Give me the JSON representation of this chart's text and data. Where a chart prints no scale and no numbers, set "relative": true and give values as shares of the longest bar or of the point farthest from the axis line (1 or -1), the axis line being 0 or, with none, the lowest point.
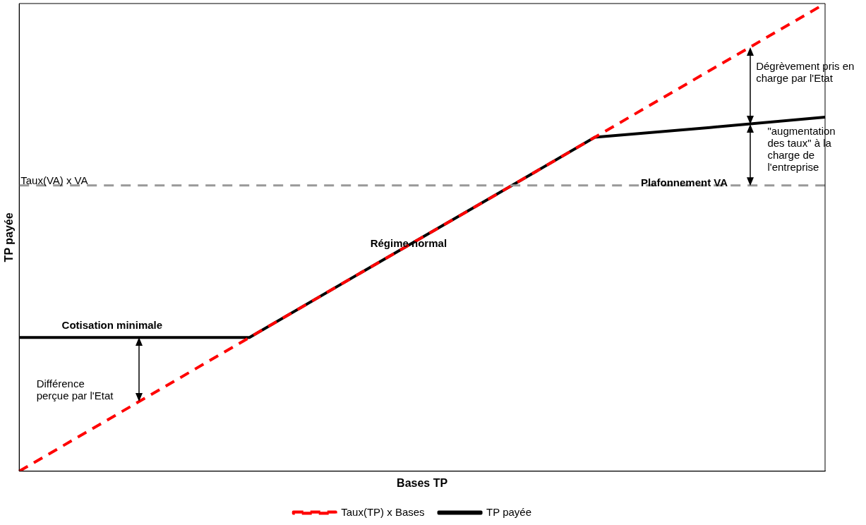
{
  "chart_data": {
    "type": "line",
    "relative": true,
    "xlabel": "Bases TP",
    "ylabel": "TP payée",
    "categories": [
      null,
      null,
      null,
      null,
      null,
      null,
      null,
      null
    ],
    "grid": false,
    "legend": "bottom",
    "tick_labels": false,
    "marker": "none",
    "series": [
      {
        "name": "Taux(TP) x Bases",
        "color": "#ff0000",
        "line_style": "dashed",
        "values": [
          0,
          0.143,
          0.286,
          0.429,
          0.571,
          0.714,
          0.857,
          1
        ]
      },
      {
        "name": "TP payée",
        "color": "#000000",
        "line_style": "solid",
        "values": [
          0.286,
          0.286,
          0.286,
          0.429,
          0.571,
          0.714,
          0.735,
          0.757
        ]
      }
    ],
    "ref_lines": [
      {
        "axis": "y",
        "value": 0.611,
        "label": "Taux(VA) x VA",
        "color": "#999999",
        "line_style": "dashed"
      }
    ],
    "annotations": [
      "Cotisation minimale",
      "Régime normal",
      "Plafonnement VA",
      "Différence perçue par l'Etat",
      "Dégrèvement pris en charge par l'Etat",
      "\"augmentation des taux\" à la charge de l'entreprise"
    ]
  }
}
